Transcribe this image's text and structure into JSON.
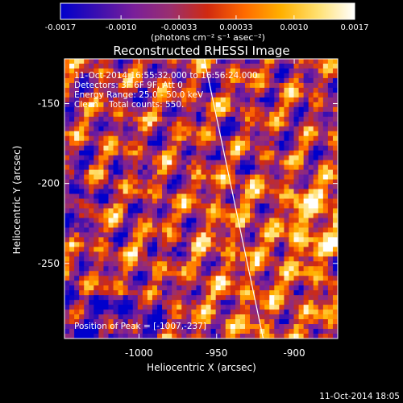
{
  "chart_data": {
    "type": "heatmap",
    "title": "Reconstructed RHESSI Image",
    "colorbar": {
      "ticks": [
        "-0.0017",
        "-0.0010",
        "-0.00033",
        "0.00033",
        "0.0010",
        "0.0017"
      ],
      "tick_values": [
        -0.0017,
        -0.001,
        -0.00033,
        0.00033,
        0.001,
        0.0017
      ],
      "range": [
        -0.0017,
        0.0017
      ],
      "unit_label": "(photons cm⁻² s⁻¹ asec⁻²)",
      "stops": [
        "#0000cc",
        "#3b0fb0",
        "#7a1f9a",
        "#9a2f6e",
        "#d02a10",
        "#ff6a00",
        "#ffb000",
        "#ffe070",
        "#ffffff"
      ]
    },
    "annotations": {
      "time_range": "11-Oct-2014 16:55:32.000 to 16:56:24.000",
      "detectors": "Detectors: 3F 6F 9F, Att 0",
      "energy": "Energy Range: 25.0 - 50.0 keV",
      "clean": "Clean    Total counts: 550.",
      "peak": "Position of Peak = [-1007,-237]"
    },
    "xlabel": "Heliocentric X (arcsec)",
    "ylabel": "Heliocentric Y (arcsec)",
    "xlim": [
      -1048,
      -872
    ],
    "ylim": [
      -297,
      -122
    ],
    "xticks": [
      -1000,
      -950,
      -900
    ],
    "xtick_labels": [
      "-1000",
      "-950",
      "-900"
    ],
    "yticks": [
      -150,
      -200,
      -250
    ],
    "ytick_labels": [
      "-150",
      "-200",
      "-250"
    ],
    "limb_line": {
      "x": [
        -958,
        -920
      ],
      "y": [
        -122,
        -297
      ]
    },
    "peak": {
      "x": -1007,
      "y": -237
    }
  },
  "footer": {
    "timestamp": "11-Oct-2014 18:05"
  }
}
